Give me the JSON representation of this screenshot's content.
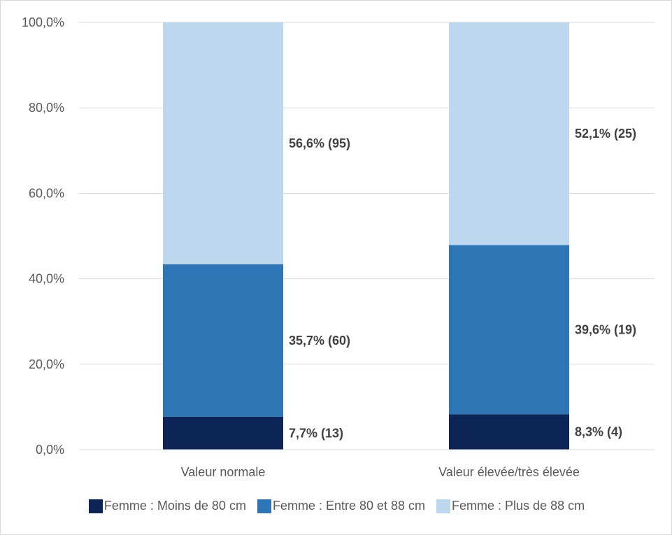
{
  "chart_data": {
    "type": "bar",
    "stacked": true,
    "categories": [
      "Valeur normale",
      "Valeur élevée/très élevée"
    ],
    "series": [
      {
        "name": "Femme : Moins de 80 cm",
        "color": "#0d2557",
        "values": [
          7.7,
          8.3
        ],
        "labels": [
          "7,7% (13)",
          "8,3% (4)"
        ]
      },
      {
        "name": "Femme : Entre 80 et 88 cm",
        "color": "#2e75b6",
        "values": [
          35.7,
          39.6
        ],
        "labels": [
          "35,7% (60)",
          "39,6% (19)"
        ]
      },
      {
        "name": "Femme : Plus de 88 cm",
        "color": "#bdd7ee",
        "values": [
          56.6,
          52.1
        ],
        "labels": [
          "56,6% (95)",
          "52,1% (25)"
        ]
      }
    ],
    "ylim": [
      0,
      100
    ],
    "yticks": [
      0,
      20,
      40,
      60,
      80,
      100
    ],
    "ytick_labels": [
      "0,0%",
      "20,0%",
      "40,0%",
      "60,0%",
      "80,0%",
      "100,0%"
    ],
    "grid": true,
    "gridline_color": "#d9d9d9",
    "legend_position": "bottom",
    "title": "",
    "xlabel": "",
    "ylabel": ""
  }
}
